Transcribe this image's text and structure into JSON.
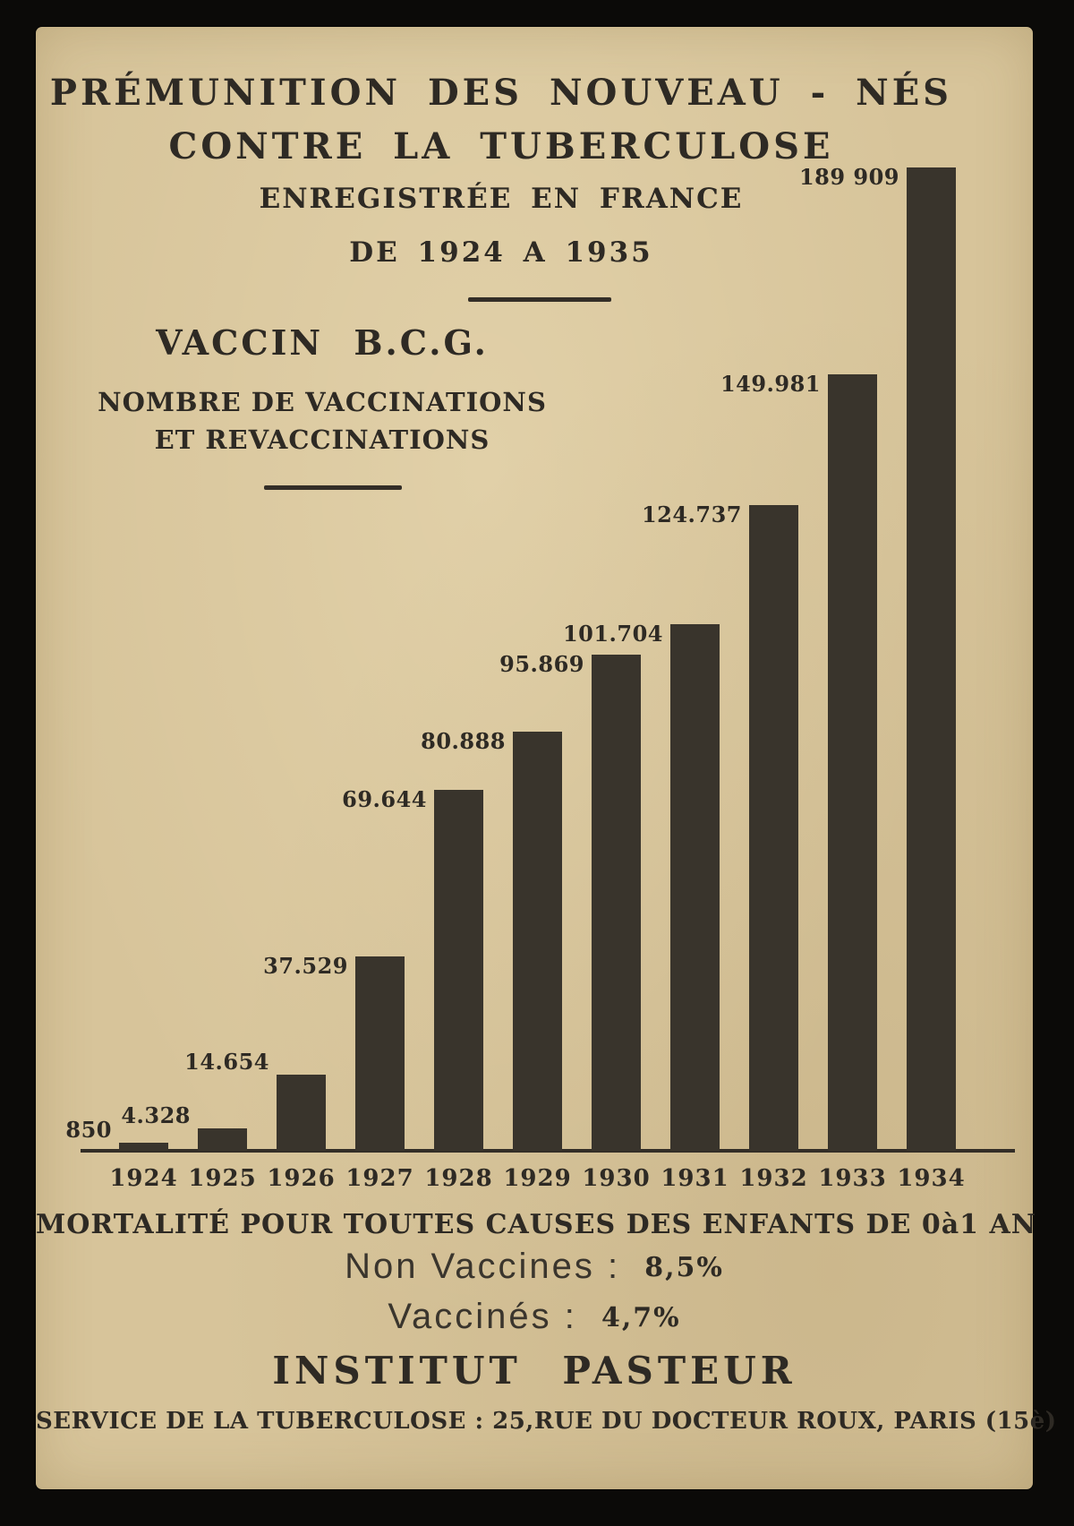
{
  "poster": {
    "title_line1": "PRÉMUNITION DES NOUVEAU - NÉS",
    "title_line2": "CONTRE LA TUBERCULOSE",
    "subtitle_line1": "ENREGISTRÉE EN FRANCE",
    "subtitle_line2": "DE 1924 A 1935",
    "section_heading": "VACCIN  B.C.G.",
    "section_sub1": "NOMBRE DE VACCINATIONS",
    "section_sub2": "ET REVACCINATIONS"
  },
  "chart_data": {
    "type": "bar",
    "title": "VACCIN B.C.G. — NOMBRE DE VACCINATIONS ET REVACCINATIONS, ENREGISTRÉE EN FRANCE DE 1924 A 1935",
    "categories": [
      "1924",
      "1925",
      "1926",
      "1927",
      "1928",
      "1929",
      "1930",
      "1931",
      "1932",
      "1933",
      "1934"
    ],
    "values": [
      850,
      4328,
      14654,
      37529,
      69644,
      80888,
      95869,
      101704,
      124737,
      149981,
      189909
    ],
    "value_labels": [
      "850",
      "4.328",
      "14.654",
      "37.529",
      "69.644",
      "80.888",
      "95.869",
      "101.704",
      "124.737",
      "149.981",
      "189 909"
    ],
    "xlabel": "",
    "ylabel": "",
    "ylim": [
      0,
      189909
    ],
    "grid": false,
    "legend": "none",
    "bar_color": "#39342c"
  },
  "footer": {
    "mortality_heading": "MORTALITÉ POUR TOUTES CAUSES DES ENFANTS DE 0à1 AN",
    "row1_label": "Non Vaccines :",
    "row1_value": "8,5%",
    "row2_label": "Vaccinés :",
    "row2_value": "4,7%",
    "institute": "INSTITUT PASTEUR",
    "service_line": "SERVICE DE LA TUBERCULOSE : 25,RUE DU DOCTEUR ROUX, PARIS (15è)"
  },
  "colors": {
    "paper": "#d7c49a",
    "ink": "#2e2a24",
    "bar": "#39342c",
    "surround": "#0b0a08"
  }
}
